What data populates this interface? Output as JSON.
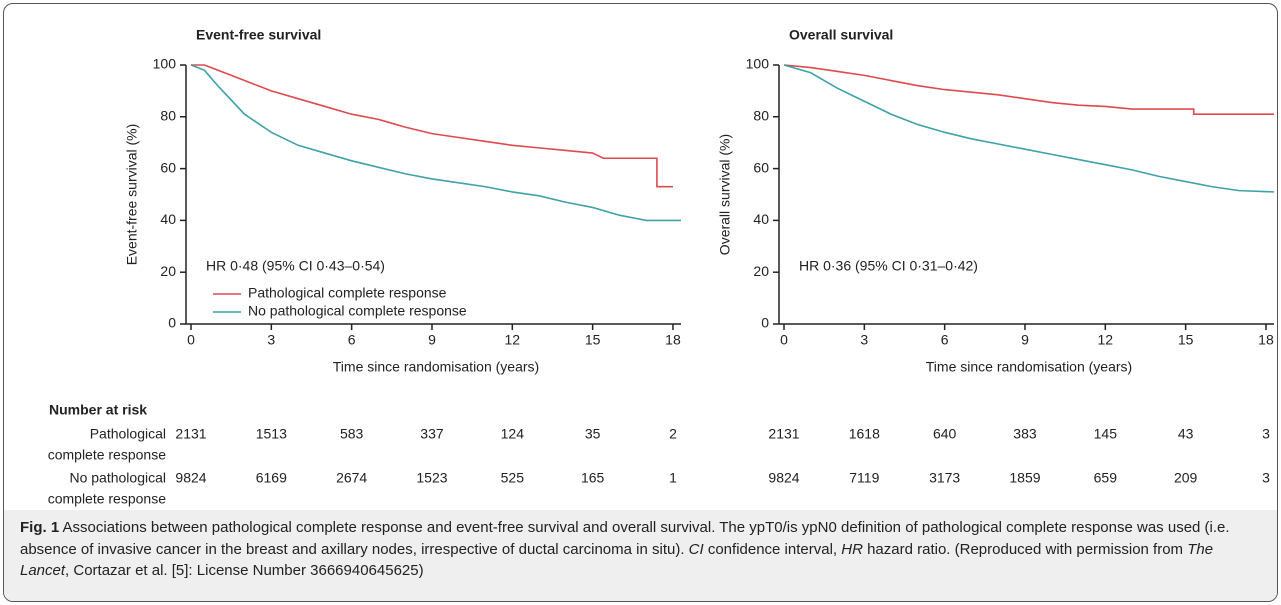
{
  "chart_data": [
    {
      "type": "line",
      "title": "Event-free survival",
      "xlabel": "Time since randomisation (years)",
      "ylabel": "Event-free survival (%)",
      "annotation": "HR 0·48 (95% CI 0·43–0·54)",
      "xlim": [
        0,
        18.3
      ],
      "xticks": [
        0,
        3,
        6,
        9,
        12,
        15,
        18
      ],
      "ylim": [
        0,
        100
      ],
      "yticks": [
        0,
        20,
        40,
        60,
        80,
        100
      ],
      "legend": "lower left",
      "series": [
        {
          "name": "Pathological complete response",
          "color": "#df4a4f",
          "x": [
            0,
            0.5,
            1,
            2,
            3,
            4,
            5,
            6,
            7,
            8,
            9,
            10,
            11,
            12,
            13,
            14,
            15,
            15.4,
            17.4,
            17.4,
            18
          ],
          "values": [
            100,
            100,
            98,
            94,
            90,
            87,
            84,
            81,
            79,
            76,
            73.5,
            72,
            70.5,
            69,
            68,
            67,
            66,
            64,
            64,
            53,
            53
          ]
        },
        {
          "name": "No pathological complete response",
          "color": "#3fa2a8",
          "x": [
            0,
            0.5,
            1,
            2,
            3,
            4,
            5,
            6,
            7,
            8,
            9,
            10,
            11,
            12,
            13,
            14,
            15,
            16,
            17,
            18.3
          ],
          "values": [
            100,
            98,
            92,
            81,
            74,
            69,
            66,
            63,
            60.5,
            58,
            56,
            54.5,
            53,
            51,
            49.5,
            47,
            45,
            42,
            40,
            40
          ]
        }
      ]
    },
    {
      "type": "line",
      "title": "Overall survival",
      "xlabel": "Time since randomisation (years)",
      "ylabel": "Overall survival (%)",
      "annotation": "HR 0·36 (95% CI 0·31–0·42)",
      "xlim": [
        0,
        18.3
      ],
      "xticks": [
        0,
        3,
        6,
        9,
        12,
        15,
        18
      ],
      "ylim": [
        0,
        100
      ],
      "yticks": [
        0,
        20,
        40,
        60,
        80,
        100
      ],
      "series": [
        {
          "color": "#df4a4f",
          "x": [
            0,
            1,
            2,
            3,
            4,
            5,
            6,
            7,
            8,
            9,
            10,
            11,
            12,
            13,
            15.3,
            15.3,
            18.3
          ],
          "values": [
            100,
            99,
            97.5,
            96,
            94,
            92,
            90.5,
            89.5,
            88.5,
            87,
            85.5,
            84.5,
            84,
            83,
            83,
            81,
            81
          ]
        },
        {
          "color": "#3fa2a8",
          "x": [
            0,
            1,
            2,
            3,
            4,
            5,
            6,
            7,
            8,
            9,
            10,
            11,
            12,
            13,
            14,
            15,
            16,
            17,
            18.3
          ],
          "values": [
            100,
            97,
            91,
            86,
            81,
            77,
            74,
            71.5,
            69.5,
            67.5,
            65.5,
            63.5,
            61.5,
            59.5,
            57,
            55,
            53,
            51.5,
            51
          ]
        }
      ]
    }
  ],
  "risk_table": {
    "title": "Number at risk",
    "row_labels": [
      [
        "Pathological",
        "complete response"
      ],
      [
        "No pathological",
        "complete response"
      ]
    ],
    "charts": [
      [
        [
          2131,
          1513,
          583,
          337,
          124,
          35,
          2
        ],
        [
          9824,
          6169,
          2674,
          1523,
          525,
          165,
          1
        ]
      ],
      [
        [
          2131,
          1618,
          640,
          383,
          145,
          43,
          3
        ],
        [
          9824,
          7119,
          3173,
          1859,
          659,
          209,
          3
        ]
      ]
    ]
  },
  "caption": {
    "label": "Fig. 1",
    "parts": [
      {
        "text": " Associations between pathological complete response and event-free survival and overall survival. The ypT0/is ypN0 definition of pathological complete response was used (i.e. absence of invasive cancer in the breast and axillary nodes, irrespective of ductal carcinoma in situ). ",
        "italic": false
      },
      {
        "text": "CI",
        "italic": true
      },
      {
        "text": " confidence interval, ",
        "italic": false
      },
      {
        "text": "HR",
        "italic": true
      },
      {
        "text": " hazard ratio. (Reproduced with permission from ",
        "italic": false
      },
      {
        "text": "The Lancet",
        "italic": true
      },
      {
        "text": ", Cortazar et al. [5]: License Number 3666940645625)",
        "italic": false
      }
    ]
  }
}
